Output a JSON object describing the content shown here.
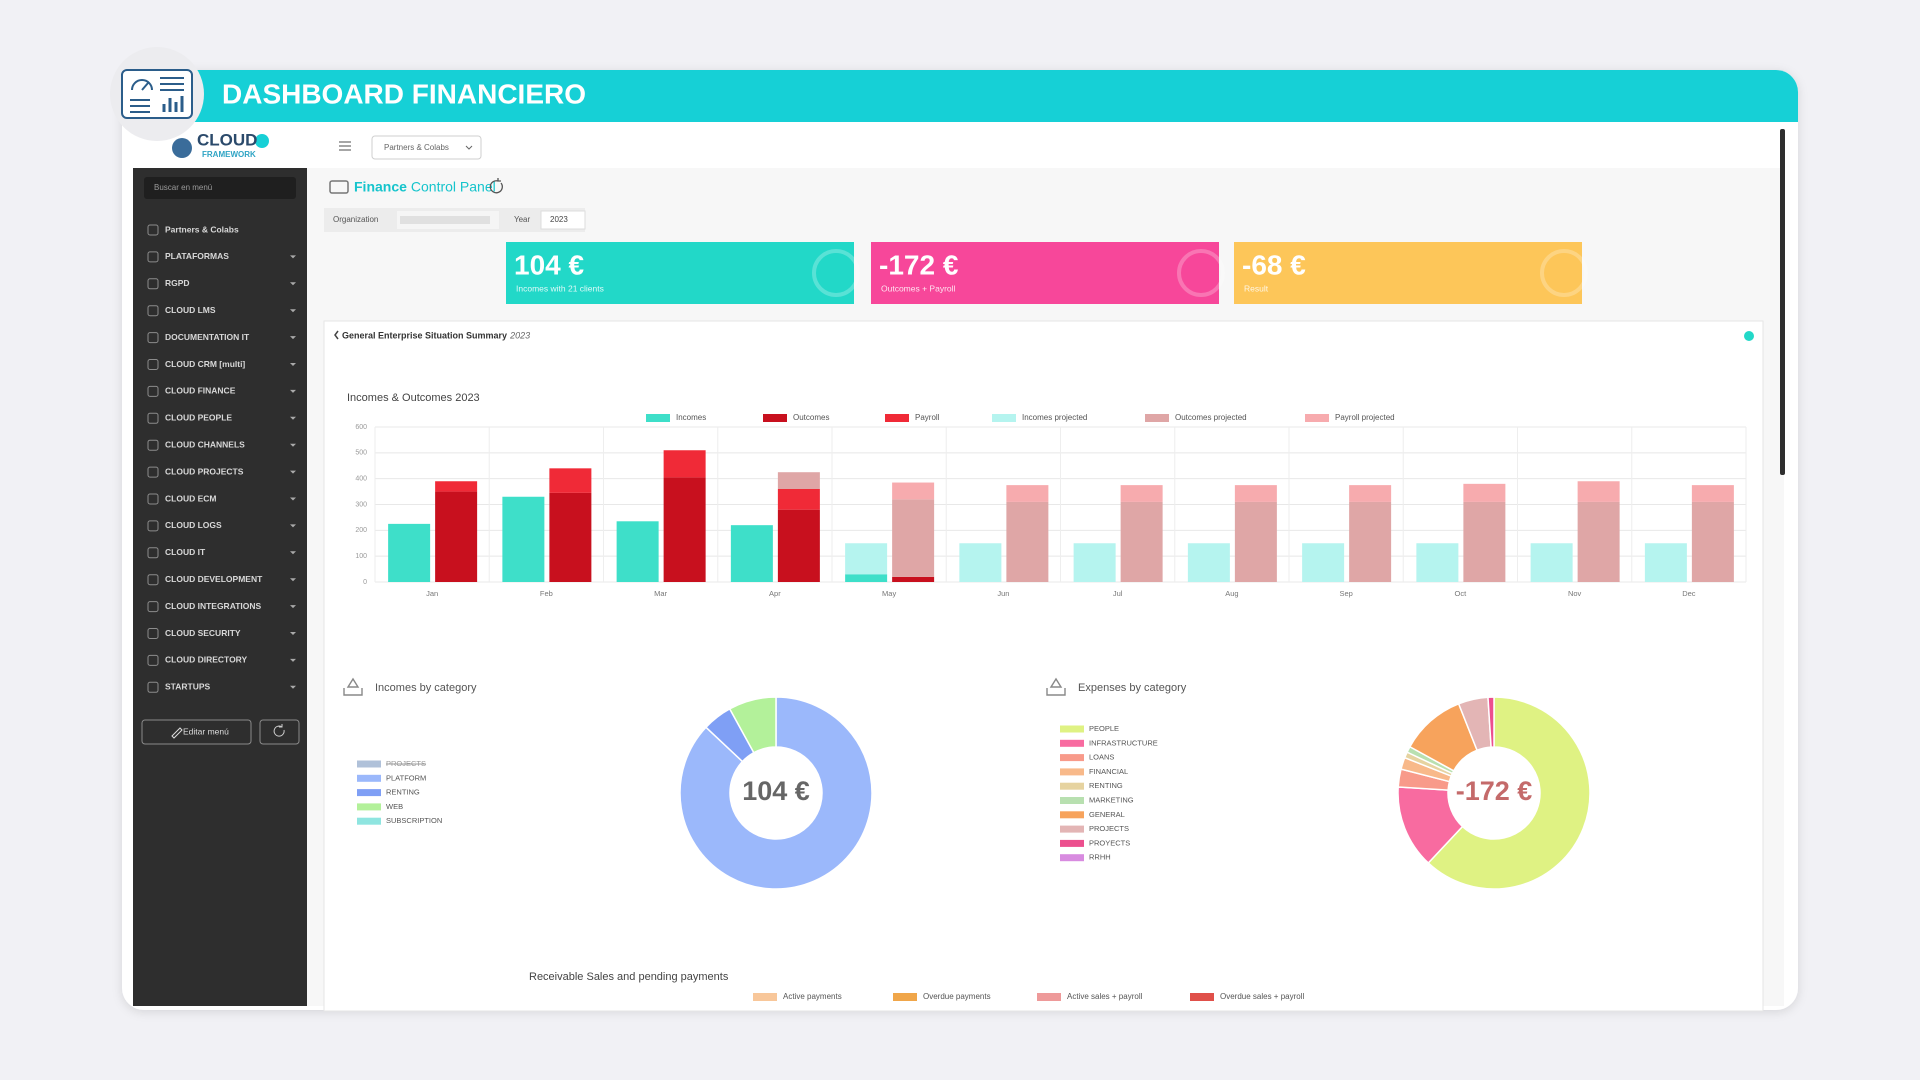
{
  "header": {
    "title": "DASHBOARD FINANCIERO"
  },
  "logo": {
    "name": "CLOUD",
    "subtitle": "FRAMEWORK"
  },
  "topbar": {
    "dropdown": "Partners & Colabs"
  },
  "sidebar": {
    "search": "Buscar en menú",
    "edit": "Editar menú",
    "items": [
      "Partners & Colabs",
      "PLATAFORMAS",
      "RGPD",
      "CLOUD LMS",
      "DOCUMENTATION IT",
      "CLOUD CRM [multi]",
      "CLOUD FINANCE",
      "CLOUD PEOPLE",
      "CLOUD CHANNELS",
      "CLOUD PROJECTS",
      "CLOUD ECM",
      "CLOUD LOGS",
      "CLOUD IT",
      "CLOUD DEVELOPMENT",
      "CLOUD INTEGRATIONS",
      "CLOUD SECURITY",
      "CLOUD DIRECTORY",
      "STARTUPS"
    ]
  },
  "panel": {
    "title_main": "Finance",
    "title_rest": "Control Panel",
    "organization": "Organization",
    "year_label": "Year",
    "year": "2023"
  },
  "kpis": [
    {
      "value": "104 €",
      "caption": "Incomes with 21 clients",
      "color": "#22d8c8"
    },
    {
      "value": "-172 €",
      "caption": "Outcomes + Payroll",
      "color": "#f7479a"
    },
    {
      "value": "-68 €",
      "caption": "Result",
      "color": "#fdc659"
    }
  ],
  "summary": {
    "title": "General Enterprise Situation Summary",
    "year": "2023"
  },
  "chart_data": [
    {
      "type": "bar",
      "title": "Incomes & Outcomes 2023",
      "categories": [
        "Jan",
        "Feb",
        "Mar",
        "Apr",
        "May",
        "Jun",
        "Jul",
        "Aug",
        "Sep",
        "Oct",
        "Nov",
        "Dec"
      ],
      "series": [
        {
          "name": "Incomes",
          "color": "#3edfc9",
          "stack": "incomes",
          "values": [
            225,
            330,
            235,
            220,
            30,
            null,
            null,
            null,
            null,
            null,
            null,
            null
          ]
        },
        {
          "name": "Outcomes",
          "color": "#c8101e",
          "stack": "outcomes",
          "values": [
            350,
            345,
            405,
            280,
            20,
            null,
            null,
            null,
            null,
            null,
            null,
            null
          ]
        },
        {
          "name": "Payroll",
          "color": "#f02a37",
          "stack": "outcomes",
          "values": [
            40,
            95,
            105,
            80,
            null,
            null,
            null,
            null,
            null,
            null,
            null,
            null
          ]
        },
        {
          "name": "Incomes projected",
          "color": "#b5f4ef",
          "stack": "incomes",
          "values": [
            null,
            null,
            null,
            null,
            120,
            150,
            150,
            150,
            150,
            150,
            150,
            150
          ]
        },
        {
          "name": "Outcomes projected",
          "color": "#dfa6a6",
          "stack": "outcomes",
          "values": [
            null,
            null,
            null,
            65,
            300,
            310,
            310,
            310,
            310,
            310,
            310,
            310
          ]
        },
        {
          "name": "Payroll projected",
          "color": "#f7abae",
          "stack": "outcomes",
          "values": [
            null,
            null,
            null,
            null,
            65,
            65,
            65,
            65,
            65,
            70,
            80,
            65
          ]
        }
      ],
      "ylim": [
        0,
        600
      ],
      "yticks": [
        0,
        100,
        200,
        300,
        400,
        500,
        600
      ],
      "grid": true
    },
    {
      "type": "pie",
      "title": "Incomes by category",
      "center_label": "104 €",
      "center_color": "#666666",
      "categories": [
        "PROJECTS",
        "PLATFORM",
        "RENTING",
        "WEB",
        "SUBSCRIPTION"
      ],
      "values": [
        null,
        87,
        5,
        8,
        0
      ],
      "colors": [
        "#8fa6c9",
        "#9bb8fb",
        "#7f9ff5",
        "#b3f19a",
        "#8fe5e0"
      ]
    },
    {
      "type": "pie",
      "title": "Expenses by category",
      "center_label": "-172 €",
      "center_color": "#c46a6a",
      "categories": [
        "PEOPLE",
        "INFRASTRUCTURE",
        "LOANS",
        "FINANCIAL",
        "RENTING",
        "MARKETING",
        "GENERAL",
        "PROJECTS",
        "PROYECTS",
        "RRHH"
      ],
      "values": [
        62,
        14,
        3,
        2,
        1,
        1,
        11,
        5,
        1,
        0
      ],
      "colors": [
        "#dff283",
        "#f86ba0",
        "#f89a8a",
        "#f8b98a",
        "#e6d3a0",
        "#b8e0b0",
        "#f7a35c",
        "#e3b5b5",
        "#ec4f8e",
        "#d88be0"
      ]
    },
    {
      "type": "legend",
      "title": "Receivable Sales and pending payments",
      "series": [
        {
          "name": "Active payments",
          "color": "#f8c79a"
        },
        {
          "name": "Overdue payments",
          "color": "#f0a64a"
        },
        {
          "name": "Active sales + payroll",
          "color": "#ee9a9a"
        },
        {
          "name": "Overdue sales + payroll",
          "color": "#e0504a"
        }
      ]
    }
  ]
}
